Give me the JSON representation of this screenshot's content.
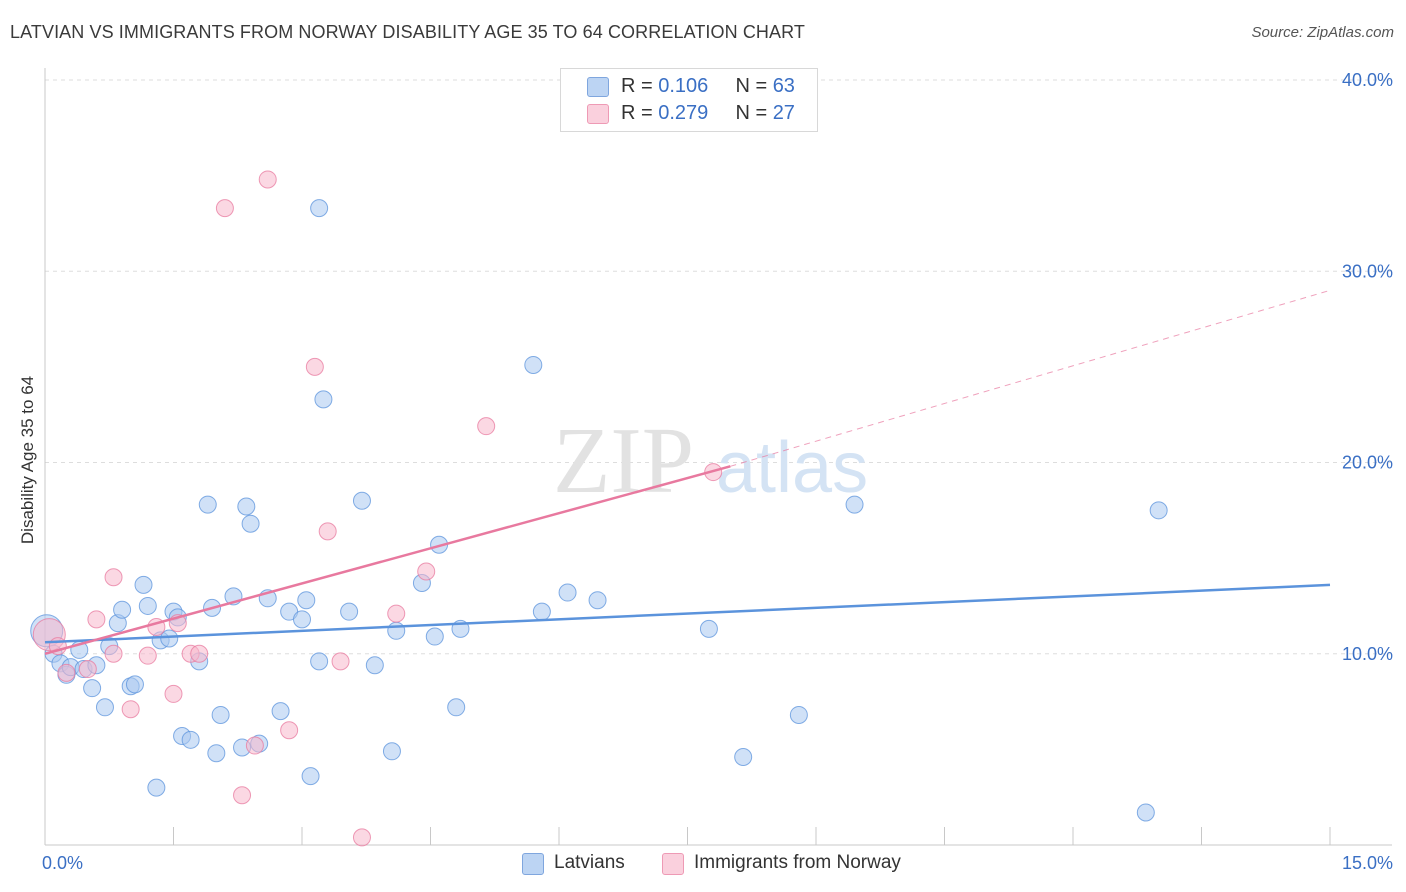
{
  "title": "LATVIAN VS IMMIGRANTS FROM NORWAY DISABILITY AGE 35 TO 64 CORRELATION CHART",
  "source": "Source: ZipAtlas.com",
  "watermark": {
    "zip": "ZIP",
    "atlas": "atlas"
  },
  "legend_top": [
    {
      "r_label": "R = ",
      "r_value": "0.106",
      "n_label": "N = ",
      "n_value": "63",
      "color": "#a9c8f0"
    },
    {
      "r_label": "R = ",
      "r_value": "0.279",
      "n_label": "N = ",
      "n_value": "27",
      "color": "#f7b8cc"
    }
  ],
  "legend_bottom": [
    {
      "label": "Latvians",
      "color": "#a9c8f0"
    },
    {
      "label": "Immigrants from Norway",
      "color": "#f7b8cc"
    }
  ],
  "chart_data": {
    "type": "scatter",
    "title": "LATVIAN VS IMMIGRANTS FROM NORWAY DISABILITY AGE 35 TO 64 CORRELATION CHART",
    "xlabel": "",
    "ylabel": "Disability Age 35 to 64",
    "xlim": [
      0,
      15
    ],
    "ylim": [
      0,
      40
    ],
    "x_tick_labels": [
      "0.0%",
      "15.0%"
    ],
    "y_ticks": [
      10,
      20,
      30,
      40
    ],
    "y_tick_labels": [
      "10.0%",
      "20.0%",
      "30.0%",
      "40.0%"
    ],
    "grid": true,
    "legend_position": "top-center",
    "series": [
      {
        "name": "Latvians",
        "color": "#5b93dc",
        "fill": "#a9c8f0",
        "r": 0.106,
        "n": 63,
        "trend": {
          "x0": 0.0,
          "y0": 10.6,
          "x1": 15.0,
          "y1": 13.6,
          "dashed_to": null
        },
        "points": [
          [
            0.02,
            11.2
          ],
          [
            0.1,
            10.0
          ],
          [
            0.18,
            9.5
          ],
          [
            0.25,
            8.9
          ],
          [
            0.3,
            9.3
          ],
          [
            0.4,
            10.2
          ],
          [
            0.45,
            9.2
          ],
          [
            0.55,
            8.2
          ],
          [
            0.6,
            9.4
          ],
          [
            0.7,
            7.2
          ],
          [
            0.75,
            10.4
          ],
          [
            0.85,
            11.6
          ],
          [
            0.9,
            12.3
          ],
          [
            1.0,
            8.3
          ],
          [
            1.05,
            8.4
          ],
          [
            1.15,
            13.6
          ],
          [
            1.2,
            12.5
          ],
          [
            1.3,
            3.0
          ],
          [
            1.35,
            10.7
          ],
          [
            1.45,
            10.8
          ],
          [
            1.5,
            12.2
          ],
          [
            1.55,
            11.9
          ],
          [
            1.6,
            5.7
          ],
          [
            1.7,
            5.5
          ],
          [
            1.8,
            9.6
          ],
          [
            1.9,
            17.8
          ],
          [
            1.95,
            12.4
          ],
          [
            2.0,
            4.8
          ],
          [
            2.05,
            6.8
          ],
          [
            2.2,
            13.0
          ],
          [
            2.3,
            5.1
          ],
          [
            2.35,
            17.7
          ],
          [
            2.4,
            16.8
          ],
          [
            2.5,
            5.3
          ],
          [
            2.6,
            12.9
          ],
          [
            2.75,
            7.0
          ],
          [
            2.85,
            12.2
          ],
          [
            3.0,
            11.8
          ],
          [
            3.05,
            12.8
          ],
          [
            3.1,
            3.6
          ],
          [
            3.2,
            9.6
          ],
          [
            3.2,
            33.3
          ],
          [
            3.25,
            23.3
          ],
          [
            3.55,
            12.2
          ],
          [
            3.7,
            18.0
          ],
          [
            3.85,
            9.4
          ],
          [
            4.1,
            11.2
          ],
          [
            4.05,
            4.9
          ],
          [
            4.4,
            13.7
          ],
          [
            4.55,
            10.9
          ],
          [
            4.6,
            15.7
          ],
          [
            4.85,
            11.3
          ],
          [
            4.8,
            7.2
          ],
          [
            5.7,
            25.1
          ],
          [
            5.8,
            12.2
          ],
          [
            6.1,
            13.2
          ],
          [
            6.45,
            12.8
          ],
          [
            7.75,
            11.3
          ],
          [
            8.15,
            4.6
          ],
          [
            8.8,
            6.8
          ],
          [
            9.45,
            17.8
          ],
          [
            13.0,
            17.5
          ],
          [
            12.85,
            1.7
          ]
        ]
      },
      {
        "name": "Immigrants from Norway",
        "color": "#e8799f",
        "fill": "#f7b8cc",
        "r": 0.279,
        "n": 27,
        "trend": {
          "x0": 0.0,
          "y0": 10.0,
          "x1": 8.0,
          "y1": 19.8,
          "dashed_to": {
            "x": 15.0,
            "y": 29.0
          }
        },
        "points": [
          [
            0.05,
            11.0
          ],
          [
            0.25,
            9.0
          ],
          [
            0.5,
            9.2
          ],
          [
            0.6,
            11.8
          ],
          [
            0.8,
            14.0
          ],
          [
            0.8,
            10.0
          ],
          [
            1.0,
            7.1
          ],
          [
            1.2,
            9.9
          ],
          [
            1.3,
            11.4
          ],
          [
            1.5,
            7.9
          ],
          [
            1.55,
            11.6
          ],
          [
            1.7,
            10.0
          ],
          [
            1.8,
            10.0
          ],
          [
            2.1,
            33.3
          ],
          [
            2.3,
            2.6
          ],
          [
            2.45,
            5.2
          ],
          [
            2.6,
            34.8
          ],
          [
            2.85,
            6.0
          ],
          [
            3.15,
            25.0
          ],
          [
            3.3,
            16.4
          ],
          [
            3.45,
            9.6
          ],
          [
            3.7,
            0.4
          ],
          [
            4.1,
            12.1
          ],
          [
            4.45,
            14.3
          ],
          [
            5.15,
            21.9
          ],
          [
            7.8,
            19.5
          ],
          [
            0.15,
            10.4
          ]
        ]
      }
    ]
  }
}
